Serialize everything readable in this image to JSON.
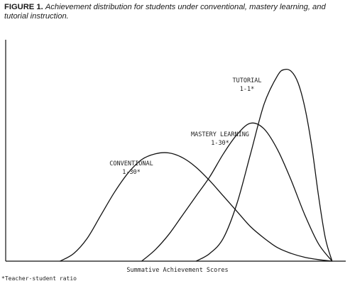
{
  "caption": {
    "label": "FIGURE 1.",
    "text": "Achievement distribution for students under conventional, mastery learning, and tutorial instruction."
  },
  "footnote": "*Teacher-student ratio",
  "chart_data": {
    "type": "line",
    "title": "",
    "xlabel": "Summative Achievement Scores",
    "ylabel": "",
    "xlim": [
      0,
      100
    ],
    "ylim": [
      0,
      100
    ],
    "grid": false,
    "legend": "none",
    "color": "#111111",
    "series": [
      {
        "label_lines": [
          "CONVENTIONAL",
          "1-30*"
        ],
        "x": [
          16,
          20,
          24,
          28,
          32,
          36,
          40,
          44,
          48,
          52,
          56,
          60,
          64,
          68,
          72,
          76,
          80,
          84,
          88,
          92,
          96
        ],
        "y": [
          0,
          4,
          12,
          24,
          36,
          46,
          53,
          56,
          56.5,
          54,
          49,
          42,
          34,
          26,
          18,
          12,
          7,
          4,
          2,
          0.8,
          0
        ]
      },
      {
        "label_lines": [
          "MASTERY LEARNING",
          "1-30*"
        ],
        "x": [
          40,
          44,
          48,
          52,
          56,
          60,
          64,
          68,
          72,
          76,
          80,
          84,
          88,
          92,
          96
        ],
        "y": [
          0,
          6,
          14,
          24,
          34,
          44,
          56,
          66,
          72,
          69,
          58,
          42,
          24,
          9,
          0
        ]
      },
      {
        "label_lines": [
          "TUTORIAL",
          "1-1*"
        ],
        "x": [
          56,
          60,
          64,
          68,
          72,
          76,
          80,
          82,
          84,
          86,
          88,
          90,
          92,
          94,
          96
        ],
        "y": [
          0,
          4,
          12,
          30,
          56,
          82,
          97,
          100,
          99,
          93,
          80,
          60,
          34,
          12,
          0
        ]
      }
    ]
  }
}
